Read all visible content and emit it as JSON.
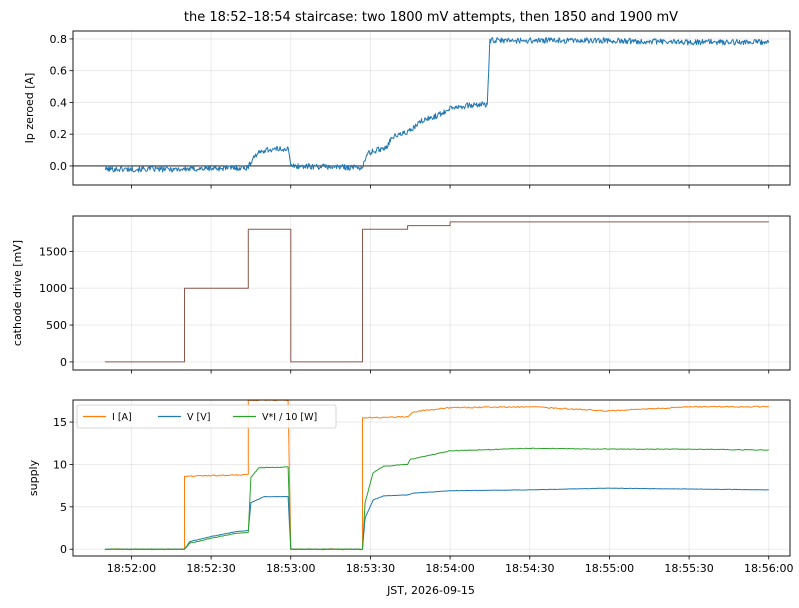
{
  "title": "the 18:52–18:54 staircase: two 1800 mV attempts, then 1850 and 1900 mV",
  "xlabel": "JST, 2026-09-15",
  "x_ticks": [
    "18:52:00",
    "18:52:30",
    "18:53:00",
    "18:53:30",
    "18:54:00",
    "18:54:30",
    "18:55:00",
    "18:55:30",
    "18:56:00"
  ],
  "colors": {
    "blue": "#1f77b4",
    "orange": "#ff7f0e",
    "green": "#2ca02c",
    "brown": "#8c564b"
  },
  "chart_data": [
    {
      "type": "line",
      "ylabel": "Ip zeroed [A]",
      "xlim": [
        "18:51:38",
        "18:56:08"
      ],
      "ylim": [
        -0.12,
        0.85
      ],
      "y_ticks": [
        "0.0",
        "0.2",
        "0.4",
        "0.6",
        "0.8"
      ],
      "reference_line_y": 0.0,
      "series": [
        {
          "color": "#1f77b4",
          "points": [
            [
              "18:51:50",
              -0.02
            ],
            [
              "18:52:20",
              -0.02
            ],
            [
              "18:52:44",
              -0.01
            ],
            [
              "18:52:46",
              0.06
            ],
            [
              "18:52:50",
              0.1
            ],
            [
              "18:52:59",
              0.11
            ],
            [
              "18:53:00",
              0.0
            ],
            [
              "18:53:27",
              -0.01
            ],
            [
              "18:53:29",
              0.08
            ],
            [
              "18:53:36",
              0.12
            ],
            [
              "18:53:38",
              0.18
            ],
            [
              "18:53:45",
              0.22
            ],
            [
              "18:53:49",
              0.28
            ],
            [
              "18:53:57",
              0.33
            ],
            [
              "18:54:00",
              0.37
            ],
            [
              "18:54:14",
              0.39
            ],
            [
              "18:54:15",
              0.79
            ],
            [
              "18:55:00",
              0.79
            ],
            [
              "18:55:27",
              0.78
            ],
            [
              "18:56:00",
              0.78
            ]
          ]
        }
      ]
    },
    {
      "type": "line",
      "ylabel": "cathode drive [mV]",
      "xlim": [
        "18:51:38",
        "18:56:08"
      ],
      "ylim": [
        -110,
        1980
      ],
      "y_ticks": [
        "0",
        "500",
        "1000",
        "1500"
      ],
      "series": [
        {
          "color": "#8c564b",
          "step": true,
          "points": [
            [
              "18:51:50",
              0
            ],
            [
              "18:52:20",
              0
            ],
            [
              "18:52:20",
              1000
            ],
            [
              "18:52:44",
              1000
            ],
            [
              "18:52:44",
              1800
            ],
            [
              "18:53:00",
              1800
            ],
            [
              "18:53:00",
              0
            ],
            [
              "18:53:27",
              0
            ],
            [
              "18:53:27",
              1800
            ],
            [
              "18:53:44",
              1800
            ],
            [
              "18:53:44",
              1850
            ],
            [
              "18:54:00",
              1850
            ],
            [
              "18:54:00",
              1900
            ],
            [
              "18:56:00",
              1900
            ]
          ]
        }
      ]
    },
    {
      "type": "line",
      "ylabel": "supply",
      "xlim": [
        "18:51:38",
        "18:56:08"
      ],
      "ylim": [
        -0.8,
        17.6
      ],
      "y_ticks": [
        "0",
        "5",
        "10",
        "15"
      ],
      "legend_position": "upper-left",
      "series": [
        {
          "name": "I [A]",
          "color": "#ff7f0e",
          "points": [
            [
              "18:51:50",
              0
            ],
            [
              "18:52:18",
              0
            ],
            [
              "18:52:20",
              0
            ],
            [
              "18:52:20",
              8.6
            ],
            [
              "18:52:44",
              8.8
            ],
            [
              "18:52:44",
              17.6
            ],
            [
              "18:52:59",
              17.6
            ],
            [
              "18:53:00",
              0
            ],
            [
              "18:53:27",
              0
            ],
            [
              "18:53:27",
              15.5
            ],
            [
              "18:53:44",
              15.6
            ],
            [
              "18:53:46",
              16.2
            ],
            [
              "18:54:00",
              16.7
            ],
            [
              "18:54:30",
              16.8
            ],
            [
              "18:55:00",
              16.3
            ],
            [
              "18:55:30",
              16.8
            ],
            [
              "18:56:00",
              16.8
            ]
          ]
        },
        {
          "name": "V [V]",
          "color": "#1f77b4",
          "points": [
            [
              "18:51:50",
              0
            ],
            [
              "18:52:20",
              0
            ],
            [
              "18:52:22",
              0.9
            ],
            [
              "18:52:30",
              1.5
            ],
            [
              "18:52:40",
              2.1
            ],
            [
              "18:52:44",
              2.2
            ],
            [
              "18:52:45",
              5.5
            ],
            [
              "18:52:50",
              6.2
            ],
            [
              "18:52:59",
              6.2
            ],
            [
              "18:53:00",
              0
            ],
            [
              "18:53:27",
              0
            ],
            [
              "18:53:28",
              3.7
            ],
            [
              "18:53:31",
              5.8
            ],
            [
              "18:53:35",
              6.3
            ],
            [
              "18:53:44",
              6.4
            ],
            [
              "18:53:46",
              6.6
            ],
            [
              "18:54:00",
              6.9
            ],
            [
              "18:54:30",
              7.0
            ],
            [
              "18:55:00",
              7.2
            ],
            [
              "18:55:30",
              7.1
            ],
            [
              "18:56:00",
              7.0
            ]
          ]
        },
        {
          "name": "V*I / 10 [W]",
          "color": "#2ca02c",
          "points": [
            [
              "18:51:50",
              0
            ],
            [
              "18:52:20",
              0
            ],
            [
              "18:52:22",
              0.7
            ],
            [
              "18:52:30",
              1.3
            ],
            [
              "18:52:40",
              1.9
            ],
            [
              "18:52:44",
              2.0
            ],
            [
              "18:52:45",
              8.5
            ],
            [
              "18:52:48",
              9.6
            ],
            [
              "18:52:59",
              9.7
            ],
            [
              "18:53:00",
              0
            ],
            [
              "18:53:27",
              0
            ],
            [
              "18:53:28",
              5.5
            ],
            [
              "18:53:31",
              9.0
            ],
            [
              "18:53:35",
              9.8
            ],
            [
              "18:53:44",
              10.0
            ],
            [
              "18:53:45",
              10.6
            ],
            [
              "18:54:00",
              11.6
            ],
            [
              "18:54:30",
              11.9
            ],
            [
              "18:55:00",
              11.8
            ],
            [
              "18:55:30",
              11.8
            ],
            [
              "18:56:00",
              11.7
            ]
          ]
        }
      ]
    }
  ]
}
